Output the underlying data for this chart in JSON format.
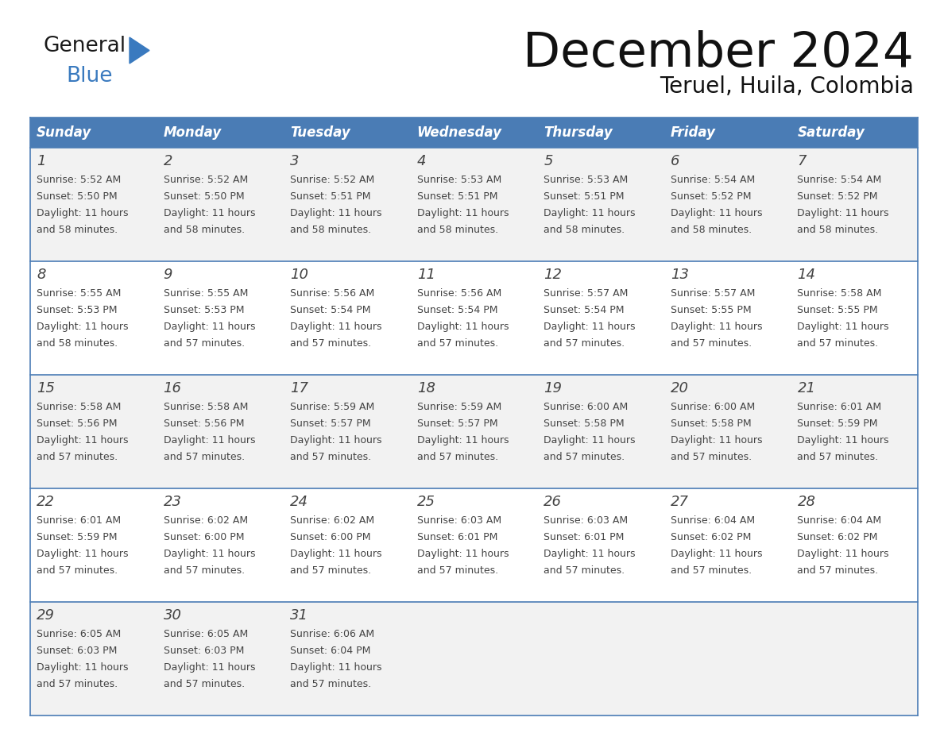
{
  "title": "December 2024",
  "subtitle": "Teruel, Huila, Colombia",
  "days_of_week": [
    "Sunday",
    "Monday",
    "Tuesday",
    "Wednesday",
    "Thursday",
    "Friday",
    "Saturday"
  ],
  "header_bg": "#4a7cb5",
  "header_text": "#FFFFFF",
  "row_bg_light": "#F2F2F2",
  "row_bg_white": "#FFFFFF",
  "border_color": "#4a7cb5",
  "text_color": "#444444",
  "logo_black": "#1a1a1a",
  "logo_blue": "#3a7abf",
  "triangle_color": "#3a7abf",
  "weeks": [
    [
      {
        "day": 1,
        "sunrise": "5:52 AM",
        "sunset": "5:50 PM",
        "daylight": "11 hours and 58 minutes"
      },
      {
        "day": 2,
        "sunrise": "5:52 AM",
        "sunset": "5:50 PM",
        "daylight": "11 hours and 58 minutes"
      },
      {
        "day": 3,
        "sunrise": "5:52 AM",
        "sunset": "5:51 PM",
        "daylight": "11 hours and 58 minutes"
      },
      {
        "day": 4,
        "sunrise": "5:53 AM",
        "sunset": "5:51 PM",
        "daylight": "11 hours and 58 minutes"
      },
      {
        "day": 5,
        "sunrise": "5:53 AM",
        "sunset": "5:51 PM",
        "daylight": "11 hours and 58 minutes"
      },
      {
        "day": 6,
        "sunrise": "5:54 AM",
        "sunset": "5:52 PM",
        "daylight": "11 hours and 58 minutes"
      },
      {
        "day": 7,
        "sunrise": "5:54 AM",
        "sunset": "5:52 PM",
        "daylight": "11 hours and 58 minutes"
      }
    ],
    [
      {
        "day": 8,
        "sunrise": "5:55 AM",
        "sunset": "5:53 PM",
        "daylight": "11 hours and 58 minutes"
      },
      {
        "day": 9,
        "sunrise": "5:55 AM",
        "sunset": "5:53 PM",
        "daylight": "11 hours and 57 minutes"
      },
      {
        "day": 10,
        "sunrise": "5:56 AM",
        "sunset": "5:54 PM",
        "daylight": "11 hours and 57 minutes"
      },
      {
        "day": 11,
        "sunrise": "5:56 AM",
        "sunset": "5:54 PM",
        "daylight": "11 hours and 57 minutes"
      },
      {
        "day": 12,
        "sunrise": "5:57 AM",
        "sunset": "5:54 PM",
        "daylight": "11 hours and 57 minutes"
      },
      {
        "day": 13,
        "sunrise": "5:57 AM",
        "sunset": "5:55 PM",
        "daylight": "11 hours and 57 minutes"
      },
      {
        "day": 14,
        "sunrise": "5:58 AM",
        "sunset": "5:55 PM",
        "daylight": "11 hours and 57 minutes"
      }
    ],
    [
      {
        "day": 15,
        "sunrise": "5:58 AM",
        "sunset": "5:56 PM",
        "daylight": "11 hours and 57 minutes"
      },
      {
        "day": 16,
        "sunrise": "5:58 AM",
        "sunset": "5:56 PM",
        "daylight": "11 hours and 57 minutes"
      },
      {
        "day": 17,
        "sunrise": "5:59 AM",
        "sunset": "5:57 PM",
        "daylight": "11 hours and 57 minutes"
      },
      {
        "day": 18,
        "sunrise": "5:59 AM",
        "sunset": "5:57 PM",
        "daylight": "11 hours and 57 minutes"
      },
      {
        "day": 19,
        "sunrise": "6:00 AM",
        "sunset": "5:58 PM",
        "daylight": "11 hours and 57 minutes"
      },
      {
        "day": 20,
        "sunrise": "6:00 AM",
        "sunset": "5:58 PM",
        "daylight": "11 hours and 57 minutes"
      },
      {
        "day": 21,
        "sunrise": "6:01 AM",
        "sunset": "5:59 PM",
        "daylight": "11 hours and 57 minutes"
      }
    ],
    [
      {
        "day": 22,
        "sunrise": "6:01 AM",
        "sunset": "5:59 PM",
        "daylight": "11 hours and 57 minutes"
      },
      {
        "day": 23,
        "sunrise": "6:02 AM",
        "sunset": "6:00 PM",
        "daylight": "11 hours and 57 minutes"
      },
      {
        "day": 24,
        "sunrise": "6:02 AM",
        "sunset": "6:00 PM",
        "daylight": "11 hours and 57 minutes"
      },
      {
        "day": 25,
        "sunrise": "6:03 AM",
        "sunset": "6:01 PM",
        "daylight": "11 hours and 57 minutes"
      },
      {
        "day": 26,
        "sunrise": "6:03 AM",
        "sunset": "6:01 PM",
        "daylight": "11 hours and 57 minutes"
      },
      {
        "day": 27,
        "sunrise": "6:04 AM",
        "sunset": "6:02 PM",
        "daylight": "11 hours and 57 minutes"
      },
      {
        "day": 28,
        "sunrise": "6:04 AM",
        "sunset": "6:02 PM",
        "daylight": "11 hours and 57 minutes"
      }
    ],
    [
      {
        "day": 29,
        "sunrise": "6:05 AM",
        "sunset": "6:03 PM",
        "daylight": "11 hours and 57 minutes"
      },
      {
        "day": 30,
        "sunrise": "6:05 AM",
        "sunset": "6:03 PM",
        "daylight": "11 hours and 57 minutes"
      },
      {
        "day": 31,
        "sunrise": "6:06 AM",
        "sunset": "6:04 PM",
        "daylight": "11 hours and 57 minutes"
      },
      null,
      null,
      null,
      null
    ]
  ]
}
